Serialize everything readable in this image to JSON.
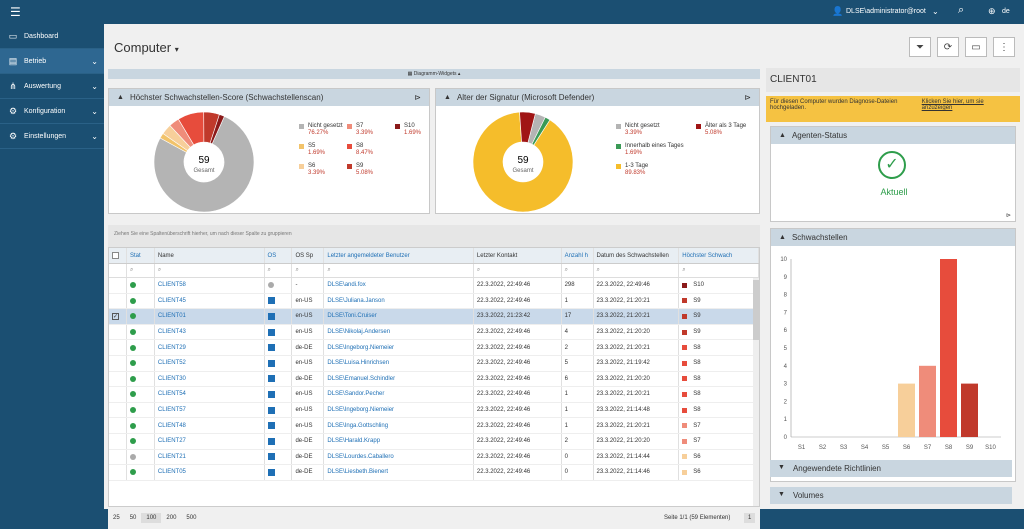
{
  "topbar": {
    "user": "DLSE\\administrator@root",
    "lang": "de"
  },
  "sidebar": {
    "items": [
      {
        "label": "Dashboard"
      },
      {
        "label": "Betrieb"
      },
      {
        "label": "Auswertung"
      },
      {
        "label": "Konfiguration"
      },
      {
        "label": "Einstellungen"
      }
    ]
  },
  "page": {
    "title": "Computer"
  },
  "widgets_bar": "Diagramm-Widgets",
  "vuln_chart": {
    "title": "Höchster Schwachstellen-Score (Schwachstellenscan)",
    "center_value": "59",
    "center_label": "Gesamt",
    "legend": [
      {
        "name": "Nicht gesetzt",
        "pct": "76.27%",
        "color": "#b4b4b4"
      },
      {
        "name": "S5",
        "pct": "1.69%",
        "color": "#f2c36a"
      },
      {
        "name": "S6",
        "pct": "3.39%",
        "color": "#f7cf9a"
      },
      {
        "name": "S7",
        "pct": "3.39%",
        "color": "#ef8c7a"
      },
      {
        "name": "S8",
        "pct": "8.47%",
        "color": "#e74c3c"
      },
      {
        "name": "S9",
        "pct": "5.08%",
        "color": "#c0392b"
      },
      {
        "name": "S10",
        "pct": "1.69%",
        "color": "#8b1a1a"
      }
    ]
  },
  "sig_chart": {
    "title": "Alter der Signatur (Microsoft Defender)",
    "center_value": "59",
    "center_label": "Gesamt",
    "legend": [
      {
        "name": "Nicht gesetzt",
        "pct": "3.39%",
        "color": "#b4b4b4"
      },
      {
        "name": "Innerhalb eines Tages",
        "pct": "1.69%",
        "color": "#3a9a56"
      },
      {
        "name": "1-3 Tage",
        "pct": "89.83%",
        "color": "#f5bd2b"
      },
      {
        "name": "Älter als 3 Tage",
        "pct": "5.08%",
        "color": "#a01515"
      }
    ]
  },
  "grid": {
    "group_hint": "Ziehen Sie eine Spaltenüberschrift hierher, um nach dieser Spalte zu gruppieren",
    "columns": [
      "Stat",
      "Name",
      "OS",
      "OS Sp",
      "Letzter angemeldeter Benutzer",
      "Letzter Kontakt",
      "Anzahl h",
      "Datum des Schwachstellen",
      "Höchster Schwach"
    ],
    "rows": [
      {
        "name": "CLIENT58",
        "os": "?",
        "lang": "-",
        "user": "DLSE\\andi.fox",
        "contact": "22.3.2022, 22:49:46",
        "count": "298",
        "date": "22.3.2022, 22:49:46",
        "sev": "S10",
        "sevc": "#8b1a1a",
        "status": "ok"
      },
      {
        "name": "CLIENT45",
        "os": "win",
        "lang": "en-US",
        "user": "DLSE\\Juliana.Janson",
        "contact": "22.3.2022, 22:49:46",
        "count": "1",
        "date": "23.3.2022, 21:20:21",
        "sev": "S9",
        "sevc": "#c0392b",
        "status": "ok"
      },
      {
        "name": "CLIENT01",
        "os": "win",
        "lang": "en-US",
        "user": "DLSE\\Toni.Cruiser",
        "contact": "23.3.2022, 21:23:42",
        "count": "17",
        "date": "23.3.2022, 21:20:21",
        "sev": "S9",
        "sevc": "#c0392b",
        "status": "ok",
        "selected": true
      },
      {
        "name": "CLIENT43",
        "os": "win",
        "lang": "en-US",
        "user": "DLSE\\Nikolaj.Andersen",
        "contact": "22.3.2022, 22:49:46",
        "count": "4",
        "date": "23.3.2022, 21:20:20",
        "sev": "S9",
        "sevc": "#c0392b",
        "status": "ok"
      },
      {
        "name": "CLIENT29",
        "os": "win",
        "lang": "de-DE",
        "user": "DLSE\\Ingeborg.Niemeier",
        "contact": "22.3.2022, 22:49:46",
        "count": "2",
        "date": "23.3.2022, 21:20:21",
        "sev": "S8",
        "sevc": "#e74c3c",
        "status": "ok"
      },
      {
        "name": "CLIENT52",
        "os": "win",
        "lang": "en-US",
        "user": "DLSE\\Luisa.Hinrichsen",
        "contact": "22.3.2022, 22:49:46",
        "count": "5",
        "date": "23.3.2022, 21:19:42",
        "sev": "S8",
        "sevc": "#e74c3c",
        "status": "ok"
      },
      {
        "name": "CLIENT30",
        "os": "win",
        "lang": "de-DE",
        "user": "DLSE\\Emanuel.Schindler",
        "contact": "22.3.2022, 22:49:46",
        "count": "6",
        "date": "23.3.2022, 21:20:20",
        "sev": "S8",
        "sevc": "#e74c3c",
        "status": "ok"
      },
      {
        "name": "CLIENT54",
        "os": "win",
        "lang": "en-US",
        "user": "DLSE\\Sandor.Pecher",
        "contact": "22.3.2022, 22:49:46",
        "count": "1",
        "date": "23.3.2022, 21:20:21",
        "sev": "S8",
        "sevc": "#e74c3c",
        "status": "ok"
      },
      {
        "name": "CLIENT57",
        "os": "win",
        "lang": "en-US",
        "user": "DLSE\\Ingeborg.Niemeier",
        "contact": "22.3.2022, 22:49:46",
        "count": "1",
        "date": "23.3.2022, 21:14:48",
        "sev": "S8",
        "sevc": "#e74c3c",
        "status": "ok"
      },
      {
        "name": "CLIENT48",
        "os": "win",
        "lang": "en-US",
        "user": "DLSE\\Inga.Gottschling",
        "contact": "22.3.2022, 22:49:46",
        "count": "1",
        "date": "23.3.2022, 21:20:21",
        "sev": "S7",
        "sevc": "#ef8c7a",
        "status": "ok"
      },
      {
        "name": "CLIENT27",
        "os": "win",
        "lang": "de-DE",
        "user": "DLSE\\Harald.Krapp",
        "contact": "22.3.2022, 22:49:46",
        "count": "2",
        "date": "23.3.2022, 21:20:20",
        "sev": "S7",
        "sevc": "#ef8c7a",
        "status": "ok"
      },
      {
        "name": "CLIENT21",
        "os": "win",
        "lang": "de-DE",
        "user": "DLSE\\Lourdes.Caballero",
        "contact": "22.3.2022, 22:49:46",
        "count": "0",
        "date": "23.3.2022, 21:14:44",
        "sev": "S6",
        "sevc": "#f7cf9a",
        "status": "grey"
      },
      {
        "name": "CLIENT05",
        "os": "win",
        "lang": "de-DE",
        "user": "DLSE\\Liesbeth.Bienert",
        "contact": "22.3.2022, 22:49:46",
        "count": "0",
        "date": "23.3.2022, 21:14:46",
        "sev": "S6",
        "sevc": "#f7cf9a",
        "status": "ok"
      }
    ]
  },
  "footer": {
    "page_sizes": [
      "25",
      "50",
      "100",
      "200",
      "500"
    ],
    "paging_text": "Seite 1/1 (59 Elementen)",
    "page": "1"
  },
  "detail": {
    "title": "CLIENT01",
    "notice": "Für diesen Computer wurden Diagnose-Dateien hochgeladen.",
    "notice_link": "Klicken Sie hier, um sie anzuzeigen",
    "agent_title": "Agenten-Status",
    "agent_status": "Aktuell",
    "vuln_title": "Schwachstellen",
    "policies_title": "Angewendete Richtlinien",
    "volumes_title": "Volumes"
  },
  "chart_data": [
    {
      "type": "pie",
      "title": "Höchster Schwachstellen-Score (Schwachstellenscan)",
      "categories": [
        "Nicht gesetzt",
        "S5",
        "S6",
        "S7",
        "S8",
        "S9",
        "S10"
      ],
      "values": [
        76.27,
        1.69,
        3.39,
        3.39,
        8.47,
        5.08,
        1.69
      ],
      "total": 59
    },
    {
      "type": "pie",
      "title": "Alter der Signatur (Microsoft Defender)",
      "categories": [
        "Nicht gesetzt",
        "Innerhalb eines Tages",
        "1-3 Tage",
        "Älter als 3 Tage"
      ],
      "values": [
        3.39,
        1.69,
        89.83,
        5.08
      ],
      "total": 59
    },
    {
      "type": "bar",
      "title": "Schwachstellen",
      "categories": [
        "S1",
        "S2",
        "S3",
        "S4",
        "S5",
        "S6",
        "S7",
        "S8",
        "S9",
        "S10"
      ],
      "values": [
        0,
        0,
        0,
        0,
        0,
        3,
        4,
        10,
        3,
        0
      ],
      "colors": [
        "#f7cf9a",
        "#f7cf9a",
        "#f7cf9a",
        "#f7cf9a",
        "#f7cf9a",
        "#f7cf9a",
        "#ef8c7a",
        "#e74c3c",
        "#c0392b",
        "#8b1a1a"
      ],
      "ylim": [
        0,
        10
      ],
      "yticks": [
        0,
        1,
        2,
        3,
        4,
        5,
        6,
        7,
        8,
        9,
        10
      ],
      "grid": false
    }
  ]
}
